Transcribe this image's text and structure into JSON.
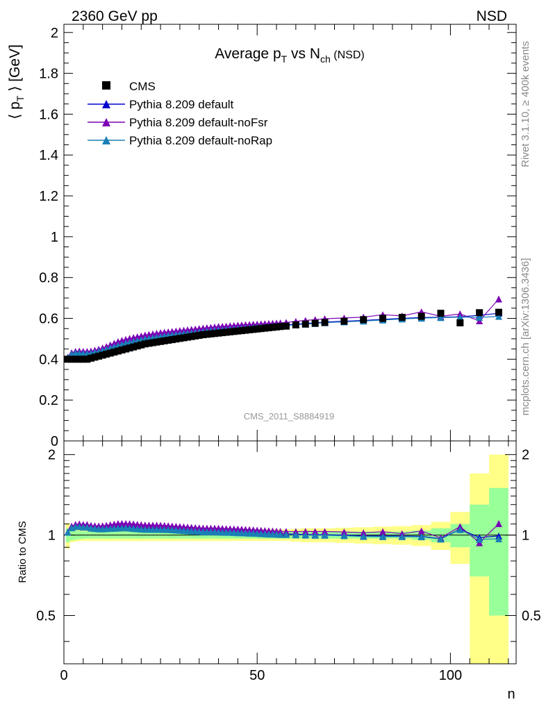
{
  "header": {
    "energy_label": "2360 GeV pp",
    "process_label": "NSD"
  },
  "side_labels": {
    "rivet": "Rivet 3.1.10, ≥ 400k events",
    "mcplots": "mcplots.cern.ch [arXiv:1306.3436]"
  },
  "chart_data": {
    "type": "scatter",
    "title_parts": {
      "pre": "Average p",
      "sub_t": "T",
      "mid": " vs N",
      "sub_ch": "ch",
      "post": " (NSD)"
    },
    "analysis_label": "CMS_2011_S8884919",
    "ylabel_parts": {
      "pre": "⟨ p",
      "sub": "T",
      "post": " ⟩ [GeV]"
    },
    "xlabel": "n",
    "ratio_ylabel": "Ratio to CMS",
    "xlim": [
      0,
      117
    ],
    "ylim": [
      0,
      2.04
    ],
    "ratio_ylim": [
      0.33,
      2.25
    ],
    "x_ticks": [
      "0",
      "50",
      "100"
    ],
    "y_ticks": [
      "0",
      "0.2",
      "0.4",
      "0.6",
      "0.8",
      "1",
      "1.2",
      "1.4",
      "1.6",
      "1.8",
      "2"
    ],
    "ratio_y_ticks": [
      "0.5",
      "1",
      "2"
    ],
    "legend": [
      "CMS",
      "Pythia 8.209 default",
      "Pythia 8.209 default-noFsr",
      "Pythia 8.209 default-noRap"
    ],
    "legend_position": "top-left",
    "colors": {
      "cms": "#000000",
      "default": "#0000cc",
      "noFsr": "#7b00b4",
      "noRap": "#1a7fb5",
      "band_inner": "#99ff99",
      "band_outer": "#ffff88"
    },
    "cms": {
      "x": [
        1,
        2,
        3,
        4,
        5,
        6,
        7,
        8,
        9,
        10,
        11,
        12,
        13,
        14,
        15,
        16,
        17,
        18,
        19,
        20,
        21,
        22,
        23,
        24,
        25,
        26,
        27,
        28,
        29,
        30,
        31,
        32,
        33,
        34,
        35,
        36,
        37,
        38,
        39,
        40,
        41,
        42,
        43,
        44,
        45,
        46,
        47,
        48,
        49,
        50,
        51,
        52,
        53,
        54,
        55,
        56,
        57.5,
        60,
        62.5,
        65,
        67.5,
        72.5,
        77.5,
        82.5,
        87.5,
        92.5,
        97.5,
        102.5,
        107.5,
        112.5
      ],
      "y": [
        0.4,
        0.4,
        0.4,
        0.4,
        0.4,
        0.4,
        0.405,
        0.41,
        0.415,
        0.42,
        0.425,
        0.43,
        0.435,
        0.44,
        0.445,
        0.45,
        0.455,
        0.46,
        0.465,
        0.47,
        0.475,
        0.478,
        0.481,
        0.484,
        0.487,
        0.49,
        0.493,
        0.496,
        0.499,
        0.502,
        0.505,
        0.508,
        0.511,
        0.514,
        0.517,
        0.52,
        0.522,
        0.524,
        0.526,
        0.528,
        0.53,
        0.532,
        0.534,
        0.536,
        0.538,
        0.54,
        0.542,
        0.544,
        0.546,
        0.548,
        0.55,
        0.552,
        0.554,
        0.556,
        0.558,
        0.56,
        0.562,
        0.568,
        0.572,
        0.576,
        0.58,
        0.586,
        0.594,
        0.6,
        0.605,
        0.61,
        0.625,
        0.578,
        0.628,
        0.63
      ],
      "band_inner": [
        0.06,
        0.045,
        0.04,
        0.035,
        0.032,
        0.03,
        0.03,
        0.03,
        0.03,
        0.03,
        0.03,
        0.03,
        0.03,
        0.03,
        0.03,
        0.03,
        0.03,
        0.03,
        0.03,
        0.03,
        0.03,
        0.03,
        0.03,
        0.03,
        0.03,
        0.03,
        0.03,
        0.03,
        0.03,
        0.03,
        0.03,
        0.03,
        0.03,
        0.03,
        0.03,
        0.03,
        0.03,
        0.03,
        0.03,
        0.03,
        0.03,
        0.03,
        0.03,
        0.03,
        0.03,
        0.03,
        0.03,
        0.03,
        0.03,
        0.03,
        0.03,
        0.03,
        0.03,
        0.03,
        0.03,
        0.03,
        0.03,
        0.03,
        0.03,
        0.03,
        0.03,
        0.03,
        0.03,
        0.03,
        0.03,
        0.04,
        0.06,
        0.1,
        0.3,
        0.5
      ],
      "band_outer": [
        0.11,
        0.06,
        0.055,
        0.05,
        0.05,
        0.05,
        0.05,
        0.05,
        0.05,
        0.05,
        0.05,
        0.05,
        0.05,
        0.05,
        0.05,
        0.05,
        0.05,
        0.05,
        0.05,
        0.05,
        0.05,
        0.05,
        0.05,
        0.05,
        0.05,
        0.05,
        0.05,
        0.05,
        0.05,
        0.05,
        0.05,
        0.05,
        0.05,
        0.05,
        0.05,
        0.05,
        0.05,
        0.05,
        0.05,
        0.05,
        0.05,
        0.05,
        0.05,
        0.05,
        0.05,
        0.05,
        0.05,
        0.05,
        0.05,
        0.05,
        0.05,
        0.05,
        0.05,
        0.05,
        0.05,
        0.05,
        0.05,
        0.055,
        0.06,
        0.06,
        0.06,
        0.065,
        0.07,
        0.075,
        0.08,
        0.09,
        0.12,
        0.22,
        0.7,
        1.0
      ]
    },
    "series": [
      {
        "name": "Pythia 8.209 default",
        "x": [
          1,
          2,
          3,
          4,
          5,
          6,
          7,
          8,
          9,
          10,
          11,
          12,
          13,
          14,
          15,
          16,
          17,
          18,
          19,
          20,
          21,
          22,
          23,
          24,
          25,
          26,
          27,
          28,
          29,
          30,
          31,
          32,
          33,
          34,
          35,
          36,
          37,
          38,
          39,
          40,
          41,
          42,
          43,
          44,
          45,
          46,
          47,
          48,
          49,
          50,
          51,
          52,
          53,
          54,
          55,
          56,
          57.5,
          60,
          62.5,
          65,
          67.5,
          72.5,
          77.5,
          82.5,
          87.5,
          92.5,
          97.5,
          102.5,
          107.5,
          112.5
        ],
        "y": [
          0.41,
          0.428,
          0.432,
          0.432,
          0.43,
          0.43,
          0.432,
          0.436,
          0.44,
          0.445,
          0.452,
          0.458,
          0.464,
          0.47,
          0.476,
          0.482,
          0.486,
          0.49,
          0.494,
          0.498,
          0.502,
          0.505,
          0.508,
          0.511,
          0.514,
          0.517,
          0.52,
          0.522,
          0.524,
          0.526,
          0.528,
          0.53,
          0.532,
          0.534,
          0.536,
          0.538,
          0.54,
          0.542,
          0.544,
          0.545,
          0.546,
          0.548,
          0.55,
          0.551,
          0.552,
          0.554,
          0.555,
          0.556,
          0.558,
          0.559,
          0.56,
          0.561,
          0.562,
          0.564,
          0.565,
          0.566,
          0.568,
          0.572,
          0.575,
          0.578,
          0.582,
          0.586,
          0.59,
          0.595,
          0.6,
          0.604,
          0.606,
          0.608,
          0.615,
          0.625
        ]
      },
      {
        "name": "Pythia 8.209 default-noFsr",
        "x": [
          1,
          2,
          3,
          4,
          5,
          6,
          7,
          8,
          9,
          10,
          11,
          12,
          13,
          14,
          15,
          16,
          17,
          18,
          19,
          20,
          21,
          22,
          23,
          24,
          25,
          26,
          27,
          28,
          29,
          30,
          31,
          32,
          33,
          34,
          35,
          36,
          37,
          38,
          39,
          40,
          41,
          42,
          43,
          44,
          45,
          46,
          47,
          48,
          49,
          50,
          51,
          52,
          53,
          54,
          55,
          56,
          57.5,
          60,
          62.5,
          65,
          67.5,
          72.5,
          77.5,
          82.5,
          87.5,
          92.5,
          97.5,
          102.5,
          107.5,
          112.5
        ],
        "y": [
          0.41,
          0.432,
          0.438,
          0.44,
          0.438,
          0.438,
          0.44,
          0.444,
          0.449,
          0.455,
          0.462,
          0.47,
          0.478,
          0.486,
          0.492,
          0.497,
          0.502,
          0.506,
          0.51,
          0.514,
          0.518,
          0.521,
          0.524,
          0.527,
          0.53,
          0.532,
          0.534,
          0.536,
          0.538,
          0.54,
          0.542,
          0.544,
          0.546,
          0.548,
          0.55,
          0.552,
          0.554,
          0.556,
          0.558,
          0.56,
          0.561,
          0.562,
          0.564,
          0.565,
          0.567,
          0.568,
          0.569,
          0.57,
          0.571,
          0.572,
          0.573,
          0.574,
          0.575,
          0.576,
          0.577,
          0.578,
          0.58,
          0.585,
          0.59,
          0.594,
          0.598,
          0.602,
          0.606,
          0.618,
          0.612,
          0.632,
          0.61,
          0.622,
          0.588,
          0.695
        ]
      },
      {
        "name": "Pythia 8.209 default-noRap",
        "x": [
          1,
          2,
          3,
          4,
          5,
          6,
          7,
          8,
          9,
          10,
          11,
          12,
          13,
          14,
          15,
          16,
          17,
          18,
          19,
          20,
          21,
          22,
          23,
          24,
          25,
          26,
          27,
          28,
          29,
          30,
          31,
          32,
          33,
          34,
          35,
          36,
          37,
          38,
          39,
          40,
          41,
          42,
          43,
          44,
          45,
          46,
          47,
          48,
          49,
          50,
          51,
          52,
          53,
          54,
          55,
          56,
          57.5,
          60,
          62.5,
          65,
          67.5,
          72.5,
          77.5,
          82.5,
          87.5,
          92.5,
          97.5,
          102.5,
          107.5,
          112.5
        ],
        "y": [
          0.41,
          0.426,
          0.43,
          0.43,
          0.428,
          0.428,
          0.43,
          0.434,
          0.438,
          0.443,
          0.449,
          0.455,
          0.461,
          0.467,
          0.473,
          0.479,
          0.483,
          0.487,
          0.491,
          0.495,
          0.499,
          0.502,
          0.505,
          0.508,
          0.511,
          0.514,
          0.517,
          0.519,
          0.521,
          0.523,
          0.525,
          0.527,
          0.529,
          0.531,
          0.533,
          0.535,
          0.537,
          0.539,
          0.541,
          0.542,
          0.543,
          0.545,
          0.547,
          0.548,
          0.549,
          0.551,
          0.552,
          0.553,
          0.555,
          0.556,
          0.557,
          0.558,
          0.559,
          0.561,
          0.562,
          0.563,
          0.565,
          0.569,
          0.572,
          0.575,
          0.579,
          0.583,
          0.587,
          0.592,
          0.597,
          0.601,
          0.604,
          0.606,
          0.605,
          0.61
        ]
      }
    ]
  }
}
